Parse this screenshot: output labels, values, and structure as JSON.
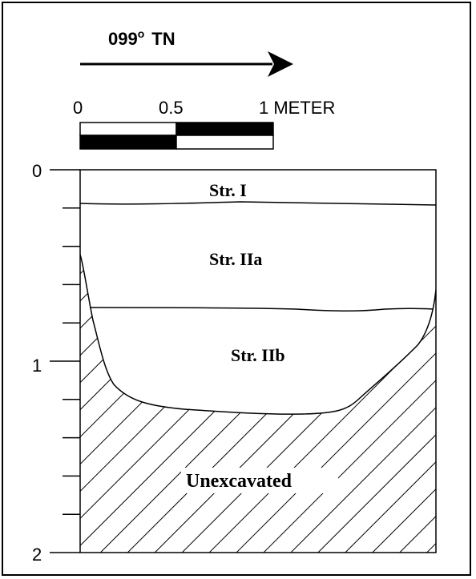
{
  "orientation": {
    "bearing_label": "099° TN",
    "bearing_value": "099",
    "degree_sign": "o",
    "reference": "TN"
  },
  "scale_bar": {
    "labels": [
      "0",
      "0.5",
      "1 METER"
    ],
    "segment_pattern": [
      "white-over-black",
      "black-over-white"
    ]
  },
  "depth_axis": {
    "labels": [
      "0",
      "1",
      "2"
    ],
    "minor_ticks_per_meter": 10
  },
  "strata": [
    {
      "label": "Str. I"
    },
    {
      "label": "Str. IIa"
    },
    {
      "label": "Str. IIb"
    }
  ],
  "unexcavated": {
    "label": "Unexcavated"
  },
  "colors": {
    "ink": "#000000",
    "paper": "#ffffff"
  }
}
